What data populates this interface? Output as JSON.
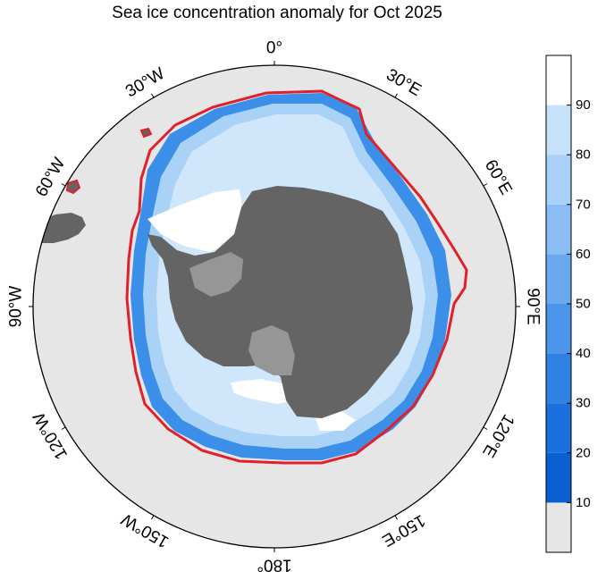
{
  "title": "Sea ice concentration anomaly for Oct 2025",
  "longitude_labels": [
    {
      "text": "0°",
      "lon": 0
    },
    {
      "text": "30°E",
      "lon": 30
    },
    {
      "text": "60°E",
      "lon": 60
    },
    {
      "text": "90°E",
      "lon": 90
    },
    {
      "text": "120°E",
      "lon": 120
    },
    {
      "text": "150°E",
      "lon": 150
    },
    {
      "text": "180°",
      "lon": 180
    },
    {
      "text": "150°W",
      "lon": -150
    },
    {
      "text": "120°W",
      "lon": -120
    },
    {
      "text": "90°W",
      "lon": -90
    },
    {
      "text": "60°W",
      "lon": -60
    },
    {
      "text": "30°W",
      "lon": -30
    }
  ],
  "colorbar": {
    "ticks": [
      "10",
      "20",
      "30",
      "40",
      "50",
      "60",
      "70",
      "80",
      "90"
    ],
    "levels": [
      {
        "from": 0,
        "to": 10,
        "color": "#e6e6e6"
      },
      {
        "from": 10,
        "to": 20,
        "color": "#0a5fd1"
      },
      {
        "from": 20,
        "to": 30,
        "color": "#1a70dd"
      },
      {
        "from": 30,
        "to": 40,
        "color": "#2f82e4"
      },
      {
        "from": 40,
        "to": 50,
        "color": "#4b95ea"
      },
      {
        "from": 50,
        "to": 60,
        "color": "#6aa9ef"
      },
      {
        "from": 60,
        "to": 70,
        "color": "#8abdf3"
      },
      {
        "from": 70,
        "to": 80,
        "color": "#a9d0f7"
      },
      {
        "from": 80,
        "to": 90,
        "color": "#c6e1fa"
      },
      {
        "from": 90,
        "to": 100,
        "color": "#ffffff"
      }
    ]
  },
  "colors": {
    "ocean": "#e6e6e6",
    "land": "#646464",
    "ice_shelf": "#969696",
    "median_edge": "#e0202a",
    "ice_outer": "#3c8fe8",
    "ice_mid": "#a9d2f6",
    "ice_inner": "#cfe6fb",
    "ice_full": "#ffffff"
  }
}
